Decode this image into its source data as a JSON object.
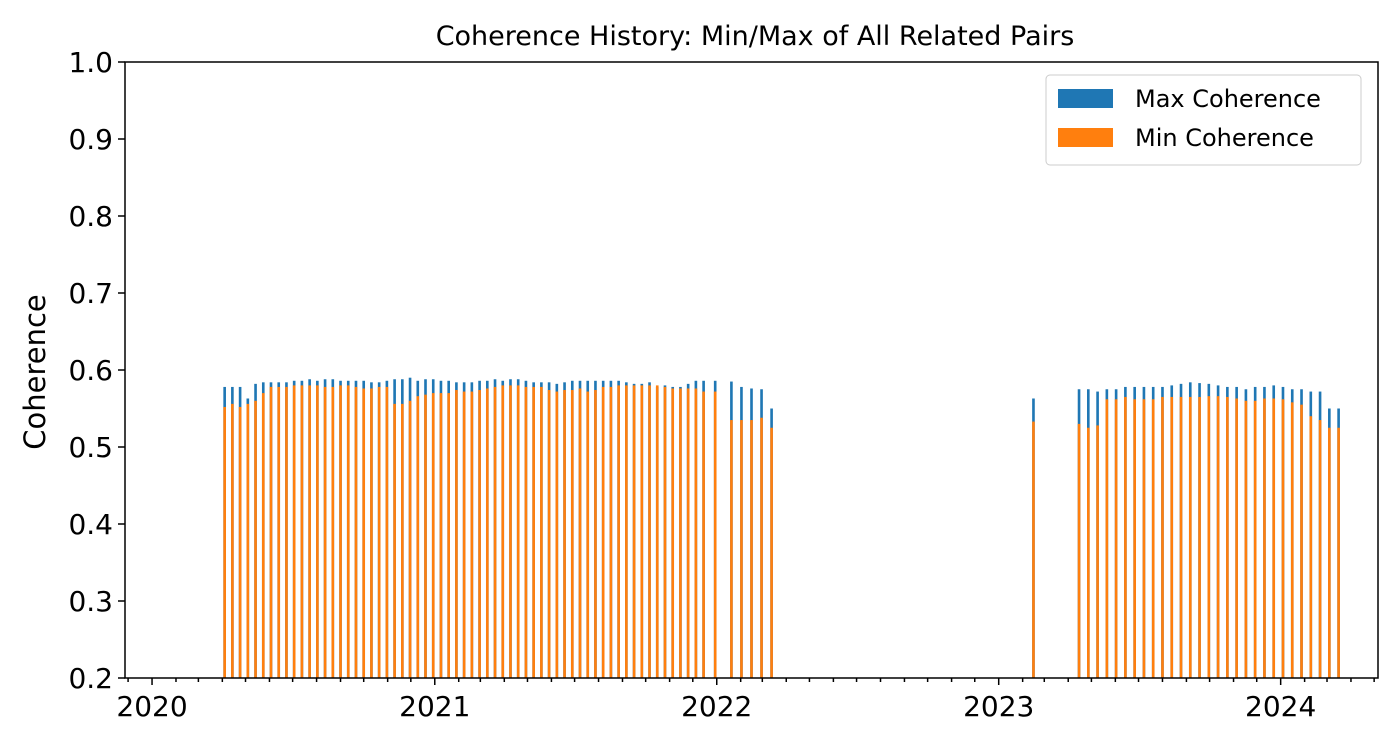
{
  "chart_data": {
    "type": "bar",
    "title": "Coherence History: Min/Max of All Related Pairs",
    "xlabel": "",
    "ylabel": "Coherence",
    "ylim": [
      0.2,
      1.0
    ],
    "xlim": [
      "2019-11-27",
      "2024-05-06"
    ],
    "yticks": [
      "0.2",
      "0.3",
      "0.4",
      "0.5",
      "0.6",
      "0.7",
      "0.8",
      "0.9",
      "1.0"
    ],
    "xticks": [
      "2020",
      "2021",
      "2022",
      "2023",
      "2024"
    ],
    "grid": false,
    "legend_position": "top-right",
    "colors": {
      "max": "#1f77b4",
      "min": "#ff7f0e"
    },
    "series": [
      {
        "name": "Max Coherence",
        "x": [
          "2020-04-04",
          "2020-04-14",
          "2020-04-24",
          "2020-05-04",
          "2020-05-14",
          "2020-05-24",
          "2020-06-03",
          "2020-06-13",
          "2020-06-23",
          "2020-07-03",
          "2020-07-13",
          "2020-07-23",
          "2020-08-02",
          "2020-08-12",
          "2020-08-22",
          "2020-09-01",
          "2020-09-11",
          "2020-09-21",
          "2020-10-01",
          "2020-10-11",
          "2020-10-21",
          "2020-10-31",
          "2020-11-10",
          "2020-11-20",
          "2020-11-30",
          "2020-12-10",
          "2020-12-20",
          "2020-12-30",
          "2021-01-09",
          "2021-01-19",
          "2021-01-29",
          "2021-02-08",
          "2021-02-18",
          "2021-02-28",
          "2021-03-10",
          "2021-03-20",
          "2021-03-30",
          "2021-04-09",
          "2021-04-19",
          "2021-04-29",
          "2021-05-09",
          "2021-05-19",
          "2021-05-29",
          "2021-06-08",
          "2021-06-18",
          "2021-06-28",
          "2021-07-08",
          "2021-07-18",
          "2021-07-28",
          "2021-08-07",
          "2021-08-17",
          "2021-08-27",
          "2021-09-06",
          "2021-09-16",
          "2021-09-26",
          "2021-10-06",
          "2021-10-16",
          "2021-10-26",
          "2021-11-05",
          "2021-11-15",
          "2021-11-25",
          "2021-12-05",
          "2021-12-15",
          "2021-12-30",
          "2022-01-20",
          "2022-02-02",
          "2022-02-15",
          "2022-02-28",
          "2022-03-13",
          "2023-02-15",
          "2023-04-15",
          "2023-04-27",
          "2023-05-09",
          "2023-05-21",
          "2023-06-02",
          "2023-06-14",
          "2023-06-26",
          "2023-07-08",
          "2023-07-20",
          "2023-08-01",
          "2023-08-13",
          "2023-08-25",
          "2023-09-06",
          "2023-09-18",
          "2023-09-30",
          "2023-10-12",
          "2023-10-24",
          "2023-11-05",
          "2023-11-17",
          "2023-11-29",
          "2023-12-11",
          "2023-12-23",
          "2024-01-04",
          "2024-01-16",
          "2024-01-28",
          "2024-02-09",
          "2024-02-21",
          "2024-03-04",
          "2024-03-16"
        ],
        "values": [
          0.578,
          0.578,
          0.578,
          0.563,
          0.582,
          0.584,
          0.584,
          0.584,
          0.584,
          0.586,
          0.586,
          0.588,
          0.586,
          0.588,
          0.588,
          0.586,
          0.586,
          0.586,
          0.586,
          0.584,
          0.584,
          0.586,
          0.588,
          0.588,
          0.59,
          0.586,
          0.588,
          0.588,
          0.586,
          0.586,
          0.584,
          0.584,
          0.584,
          0.586,
          0.586,
          0.588,
          0.586,
          0.588,
          0.588,
          0.586,
          0.584,
          0.584,
          0.584,
          0.582,
          0.584,
          0.586,
          0.586,
          0.586,
          0.586,
          0.586,
          0.586,
          0.586,
          0.584,
          0.582,
          0.582,
          0.584,
          0.578,
          0.58,
          0.578,
          0.578,
          0.582,
          0.586,
          0.586,
          0.586,
          0.585,
          0.578,
          0.576,
          0.575,
          0.55,
          0.563,
          0.575,
          0.575,
          0.572,
          0.575,
          0.575,
          0.578,
          0.578,
          0.578,
          0.578,
          0.578,
          0.58,
          0.582,
          0.584,
          0.583,
          0.582,
          0.58,
          0.578,
          0.578,
          0.575,
          0.578,
          0.578,
          0.58,
          0.578,
          0.575,
          0.575,
          0.572,
          0.572,
          0.55,
          0.55
        ]
      },
      {
        "name": "Min Coherence",
        "x": [
          "2020-04-04",
          "2020-04-14",
          "2020-04-24",
          "2020-05-04",
          "2020-05-14",
          "2020-05-24",
          "2020-06-03",
          "2020-06-13",
          "2020-06-23",
          "2020-07-03",
          "2020-07-13",
          "2020-07-23",
          "2020-08-02",
          "2020-08-12",
          "2020-08-22",
          "2020-09-01",
          "2020-09-11",
          "2020-09-21",
          "2020-10-01",
          "2020-10-11",
          "2020-10-21",
          "2020-10-31",
          "2020-11-10",
          "2020-11-20",
          "2020-11-30",
          "2020-12-10",
          "2020-12-20",
          "2020-12-30",
          "2021-01-09",
          "2021-01-19",
          "2021-01-29",
          "2021-02-08",
          "2021-02-18",
          "2021-02-28",
          "2021-03-10",
          "2021-03-20",
          "2021-03-30",
          "2021-04-09",
          "2021-04-19",
          "2021-04-29",
          "2021-05-09",
          "2021-05-19",
          "2021-05-29",
          "2021-06-08",
          "2021-06-18",
          "2021-06-28",
          "2021-07-08",
          "2021-07-18",
          "2021-07-28",
          "2021-08-07",
          "2021-08-17",
          "2021-08-27",
          "2021-09-06",
          "2021-09-16",
          "2021-09-26",
          "2021-10-06",
          "2021-10-16",
          "2021-10-26",
          "2021-11-05",
          "2021-11-15",
          "2021-11-25",
          "2021-12-05",
          "2021-12-15",
          "2021-12-30",
          "2022-01-20",
          "2022-02-02",
          "2022-02-15",
          "2022-02-28",
          "2022-03-13",
          "2023-02-15",
          "2023-04-15",
          "2023-04-27",
          "2023-05-09",
          "2023-05-21",
          "2023-06-02",
          "2023-06-14",
          "2023-06-26",
          "2023-07-08",
          "2023-07-20",
          "2023-08-01",
          "2023-08-13",
          "2023-08-25",
          "2023-09-06",
          "2023-09-18",
          "2023-09-30",
          "2023-10-12",
          "2023-10-24",
          "2023-11-05",
          "2023-11-17",
          "2023-11-29",
          "2023-12-11",
          "2023-12-23",
          "2024-01-04",
          "2024-01-16",
          "2024-01-28",
          "2024-02-09",
          "2024-02-21",
          "2024-03-04",
          "2024-03-16"
        ],
        "values": [
          0.552,
          0.556,
          0.552,
          0.556,
          0.56,
          0.57,
          0.578,
          0.578,
          0.578,
          0.58,
          0.58,
          0.58,
          0.58,
          0.578,
          0.578,
          0.58,
          0.58,
          0.578,
          0.576,
          0.576,
          0.578,
          0.578,
          0.556,
          0.556,
          0.56,
          0.566,
          0.568,
          0.57,
          0.57,
          0.57,
          0.574,
          0.572,
          0.572,
          0.574,
          0.576,
          0.578,
          0.58,
          0.58,
          0.58,
          0.578,
          0.578,
          0.578,
          0.574,
          0.572,
          0.574,
          0.574,
          0.576,
          0.572,
          0.574,
          0.578,
          0.578,
          0.58,
          0.58,
          0.58,
          0.58,
          0.58,
          0.58,
          0.578,
          0.576,
          0.576,
          0.576,
          0.576,
          0.572,
          0.572,
          0.535,
          0.535,
          0.535,
          0.538,
          0.525,
          0.533,
          0.53,
          0.525,
          0.528,
          0.562,
          0.562,
          0.565,
          0.562,
          0.562,
          0.562,
          0.565,
          0.565,
          0.565,
          0.565,
          0.565,
          0.566,
          0.566,
          0.565,
          0.563,
          0.56,
          0.56,
          0.563,
          0.563,
          0.562,
          0.558,
          0.555,
          0.54,
          0.535,
          0.525,
          0.525
        ]
      }
    ]
  }
}
